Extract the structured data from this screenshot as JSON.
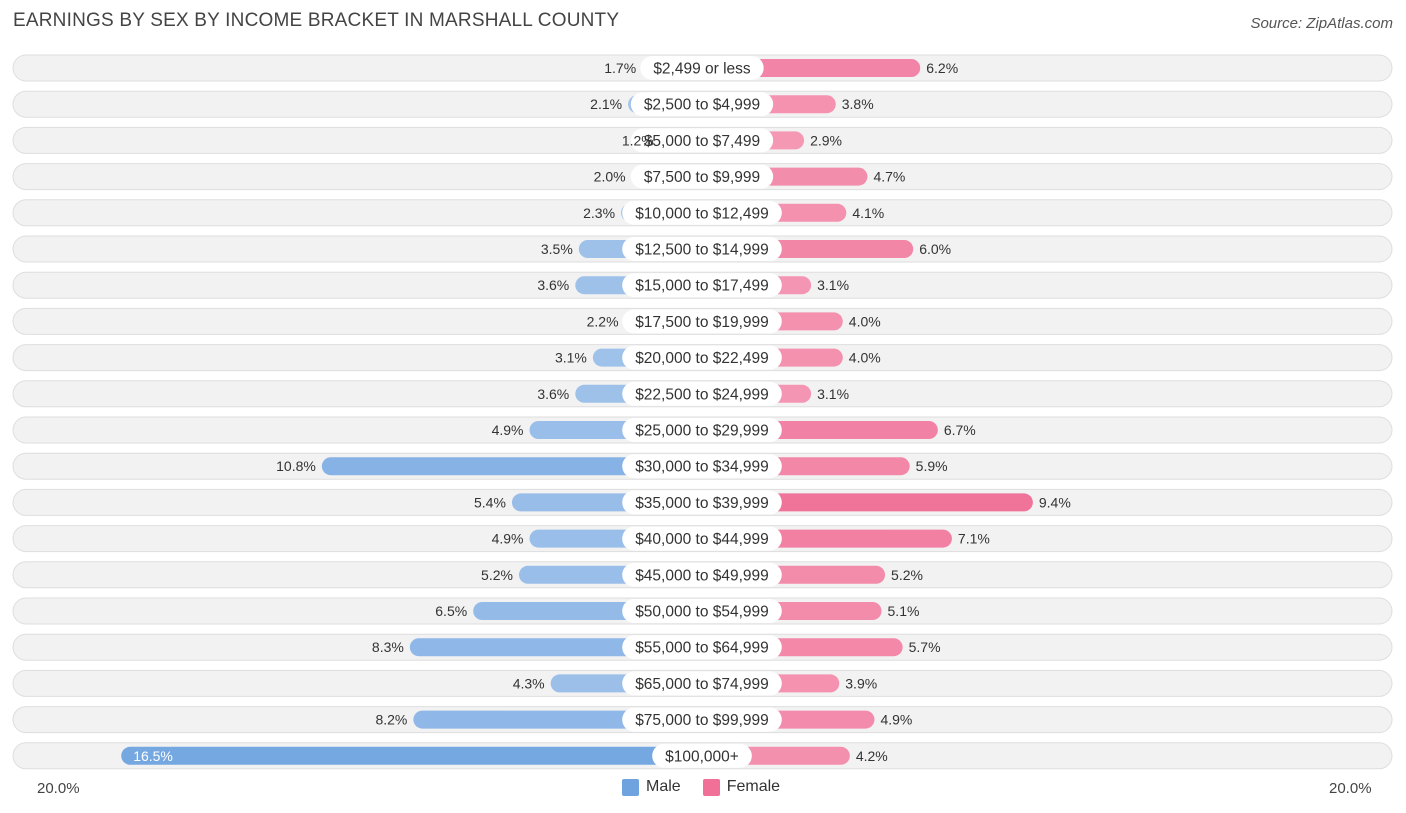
{
  "title": "EARNINGS BY SEX BY INCOME BRACKET IN MARSHALL COUNTY",
  "source": "Source: ZipAtlas.com",
  "colors": {
    "male": "#a9c8ec",
    "male_strong": "#6fa3e0",
    "female": "#f6a8bf",
    "female_strong": "#f07098"
  },
  "chart_data": {
    "type": "bar",
    "orientation": "horizontal-diverging",
    "categories": [
      "$2,499 or less",
      "$2,500 to $4,999",
      "$5,000 to $7,499",
      "$7,500 to $9,999",
      "$10,000 to $12,499",
      "$12,500 to $14,999",
      "$15,000 to $17,499",
      "$17,500 to $19,999",
      "$20,000 to $22,499",
      "$22,500 to $24,999",
      "$25,000 to $29,999",
      "$30,000 to $34,999",
      "$35,000 to $39,999",
      "$40,000 to $44,999",
      "$45,000 to $49,999",
      "$50,000 to $54,999",
      "$55,000 to $64,999",
      "$65,000 to $74,999",
      "$75,000 to $99,999",
      "$100,000+"
    ],
    "series": [
      {
        "name": "Male",
        "values": [
          1.7,
          2.1,
          1.2,
          2.0,
          2.3,
          3.5,
          3.6,
          2.2,
          3.1,
          3.6,
          4.9,
          10.8,
          5.4,
          4.9,
          5.2,
          6.5,
          8.3,
          4.3,
          8.2,
          16.5
        ]
      },
      {
        "name": "Female",
        "values": [
          6.2,
          3.8,
          2.9,
          4.7,
          4.1,
          6.0,
          3.1,
          4.0,
          4.0,
          3.1,
          6.7,
          5.9,
          9.4,
          7.1,
          5.2,
          5.1,
          5.7,
          3.9,
          4.9,
          4.2
        ]
      }
    ],
    "value_labels_male": [
      "1.7%",
      "2.1%",
      "1.2%",
      "2.0%",
      "2.3%",
      "3.5%",
      "3.6%",
      "2.2%",
      "3.1%",
      "3.6%",
      "4.9%",
      "10.8%",
      "5.4%",
      "4.9%",
      "5.2%",
      "6.5%",
      "8.3%",
      "4.3%",
      "8.2%",
      "16.5%"
    ],
    "value_labels_female": [
      "6.2%",
      "3.8%",
      "2.9%",
      "4.7%",
      "4.1%",
      "6.0%",
      "3.1%",
      "4.0%",
      "4.0%",
      "3.1%",
      "6.7%",
      "5.9%",
      "9.4%",
      "7.1%",
      "5.2%",
      "5.1%",
      "5.7%",
      "3.9%",
      "4.9%",
      "4.2%"
    ],
    "xlim": [
      -20,
      20
    ],
    "axis_left_label": "20.0%",
    "axis_right_label": "20.0%",
    "legend": [
      "Male",
      "Female"
    ]
  }
}
